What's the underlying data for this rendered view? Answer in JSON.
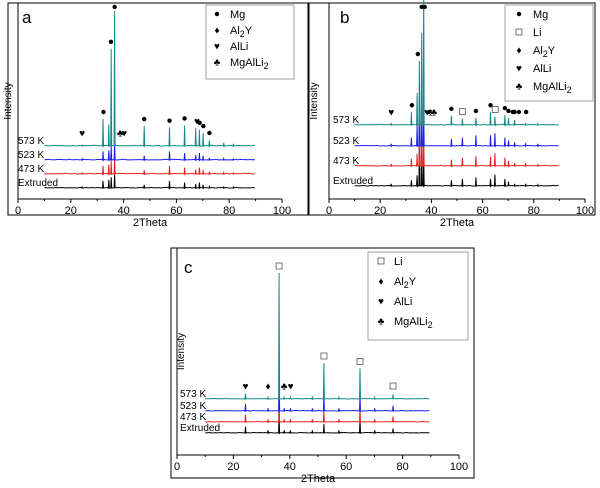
{
  "colors": {
    "Extruded": "#000000",
    "473 K": "#e8231c",
    "523 K": "#1d1ff2",
    "573 K": "#168a8a"
  },
  "chart_data": [
    {
      "type": "line",
      "panel_label": "a",
      "xlabel": "2Theta",
      "ylabel": "Intensity",
      "xlim": [
        0,
        100
      ],
      "xticks": [
        0,
        20,
        40,
        60,
        80,
        100
      ],
      "x_range": [
        10,
        90
      ],
      "series": [
        {
          "name": "Extruded",
          "label": "Extruded"
        },
        {
          "name": "473 K",
          "label": "473 K"
        },
        {
          "name": "523 K",
          "label": "523 K"
        },
        {
          "name": "573 K",
          "label": "573 K"
        }
      ],
      "peaks": [
        {
          "x": 24.3,
          "h": [
            0.2,
            0.2,
            0.25,
            0.15
          ]
        },
        {
          "x": 32.2,
          "h": [
            1.3,
            1.5,
            1.6,
            5.0
          ]
        },
        {
          "x": 34.4,
          "h": [
            1.5,
            1.7,
            1.8,
            4.0
          ]
        },
        {
          "x": 35.3,
          "h": [
            2.0,
            2.4,
            2.6,
            18.0
          ]
        },
        {
          "x": 36.6,
          "h": [
            2.5,
            3.0,
            3.2,
            25.0
          ]
        },
        {
          "x": 47.8,
          "h": [
            0.6,
            0.7,
            0.8,
            3.7
          ]
        },
        {
          "x": 57.4,
          "h": [
            1.3,
            1.5,
            1.6,
            3.4
          ]
        },
        {
          "x": 63.1,
          "h": [
            1.0,
            1.2,
            1.3,
            3.8
          ]
        },
        {
          "x": 67.3,
          "h": [
            0.7,
            0.8,
            0.9,
            3.3
          ]
        },
        {
          "x": 68.7,
          "h": [
            1.0,
            1.2,
            1.3,
            3.0
          ]
        },
        {
          "x": 70.1,
          "h": [
            0.6,
            0.7,
            0.8,
            2.4
          ]
        },
        {
          "x": 72.5,
          "h": [
            0.3,
            0.4,
            0.4,
            1.0
          ]
        },
        {
          "x": 77.9,
          "h": [
            0.2,
            0.3,
            0.3,
            0.6
          ]
        },
        {
          "x": 81.6,
          "h": [
            0.2,
            0.2,
            0.2,
            0.4
          ]
        }
      ],
      "annotations": [
        {
          "x": 24.3,
          "symbol": "heart"
        },
        {
          "x": 32.4,
          "symbol": "circle"
        },
        {
          "x": 35.2,
          "symbol": "circle"
        },
        {
          "x": 36.6,
          "symbol": "circle"
        },
        {
          "x": 38.7,
          "symbol": "club"
        },
        {
          "x": 40.2,
          "symbol": "heart"
        },
        {
          "x": 47.8,
          "symbol": "circle"
        },
        {
          "x": 57.4,
          "symbol": "circle"
        },
        {
          "x": 63.1,
          "symbol": "circle"
        },
        {
          "x": 67.8,
          "symbol": "heart"
        },
        {
          "x": 68.8,
          "symbol": "circle"
        },
        {
          "x": 70.2,
          "symbol": "circle"
        },
        {
          "x": 72.5,
          "symbol": "circle"
        }
      ],
      "legend": [
        {
          "symbol": "circle",
          "text": "Mg",
          "sub": ""
        },
        {
          "symbol": "diamond",
          "text": "Al",
          "sub": "2",
          "after": "Y"
        },
        {
          "symbol": "heart",
          "text": "AlLi",
          "sub": ""
        },
        {
          "symbol": "club",
          "text": "MgAlLi",
          "sub": "2"
        }
      ]
    },
    {
      "type": "line",
      "panel_label": "b",
      "xlabel": "2Theta",
      "ylabel": "Intensity",
      "xlim": [
        0,
        100
      ],
      "xticks": [
        0,
        20,
        40,
        60,
        80,
        100
      ],
      "x_range": [
        10,
        90
      ],
      "series": [
        {
          "name": "Extruded",
          "label": "Extruded"
        },
        {
          "name": "473 K",
          "label": "473 K"
        },
        {
          "name": "523 K",
          "label": "523 K"
        },
        {
          "name": "573 K",
          "label": "573 K"
        }
      ],
      "peaks": [
        {
          "x": 24.3,
          "h": [
            0.3,
            0.3,
            0.3,
            0.2
          ]
        },
        {
          "x": 32.2,
          "h": [
            0.8,
            1.0,
            1.2,
            1.8
          ]
        },
        {
          "x": 34.4,
          "h": [
            1.5,
            1.7,
            3.0,
            4.5
          ]
        },
        {
          "x": 35.3,
          "h": [
            6.0,
            6.0,
            7.0,
            9.0
          ]
        },
        {
          "x": 36.2,
          "h": [
            8.0,
            9.0,
            10.0,
            13.0
          ]
        },
        {
          "x": 37.0,
          "h": [
            4.0,
            4.0,
            5.0,
            20.0
          ]
        },
        {
          "x": 47.8,
          "h": [
            0.8,
            0.9,
            1.0,
            1.3
          ]
        },
        {
          "x": 52.1,
          "h": [
            1.0,
            1.2,
            1.2,
            0.9
          ]
        },
        {
          "x": 57.4,
          "h": [
            1.2,
            1.4,
            1.5,
            1.0
          ]
        },
        {
          "x": 63.1,
          "h": [
            1.0,
            1.3,
            1.5,
            1.8
          ]
        },
        {
          "x": 64.8,
          "h": [
            1.6,
            1.8,
            1.8,
            1.2
          ]
        },
        {
          "x": 68.7,
          "h": [
            1.0,
            1.2,
            1.2,
            1.4
          ]
        },
        {
          "x": 70.1,
          "h": [
            0.6,
            0.7,
            0.8,
            1.0
          ]
        },
        {
          "x": 72.5,
          "h": [
            0.3,
            0.4,
            0.5,
            0.7
          ]
        },
        {
          "x": 76.8,
          "h": [
            0.3,
            0.4,
            0.4,
            0.3
          ]
        },
        {
          "x": 81.6,
          "h": [
            0.2,
            0.2,
            0.3,
            0.2
          ]
        }
      ],
      "annotations": [
        {
          "x": 24.3,
          "symbol": "heart"
        },
        {
          "x": 32.4,
          "symbol": "circle"
        },
        {
          "x": 34.7,
          "symbol": "circle"
        },
        {
          "x": 36.2,
          "symbol": "circle"
        },
        {
          "x": 37.4,
          "symbol": "circle"
        },
        {
          "x": 38.3,
          "symbol": "heart"
        },
        {
          "x": 39.6,
          "symbol": "club"
        },
        {
          "x": 41.0,
          "symbol": "club"
        },
        {
          "x": 47.8,
          "symbol": "circle"
        },
        {
          "x": 52.1,
          "symbol": "square"
        },
        {
          "x": 57.4,
          "symbol": "circle"
        },
        {
          "x": 63.1,
          "symbol": "circle"
        },
        {
          "x": 64.9,
          "symbol": "square"
        },
        {
          "x": 68.7,
          "symbol": "circle"
        },
        {
          "x": 70.1,
          "symbol": "circle"
        },
        {
          "x": 71.8,
          "symbol": "circle"
        },
        {
          "x": 72.5,
          "symbol": "circle"
        },
        {
          "x": 74.2,
          "symbol": "circle"
        },
        {
          "x": 77.0,
          "symbol": "circle"
        }
      ],
      "legend": [
        {
          "symbol": "circle",
          "text": "Mg",
          "sub": ""
        },
        {
          "symbol": "square",
          "text": "Li",
          "sub": ""
        },
        {
          "symbol": "diamond",
          "text": "Al",
          "sub": "2",
          "after": "Y"
        },
        {
          "symbol": "heart",
          "text": "AlLi",
          "sub": ""
        },
        {
          "symbol": "club",
          "text": "MgAlLi",
          "sub": "2"
        }
      ]
    },
    {
      "type": "line",
      "panel_label": "c",
      "xlabel": "2Theta",
      "ylabel": "Intensity",
      "xlim": [
        0,
        100
      ],
      "xticks": [
        0,
        20,
        40,
        60,
        80,
        100
      ],
      "x_range": [
        10,
        90
      ],
      "series": [
        {
          "name": "Extruded",
          "label": "Extruded"
        },
        {
          "name": "473 K",
          "label": "473 K"
        },
        {
          "name": "523 K",
          "label": "523 K"
        },
        {
          "name": "573 K",
          "label": "573 K"
        }
      ],
      "peaks": [
        {
          "x": 24.3,
          "h": [
            0.7,
            0.8,
            0.8,
            0.6
          ]
        },
        {
          "x": 32.3,
          "h": [
            0.3,
            0.3,
            0.3,
            0.2
          ]
        },
        {
          "x": 36.2,
          "h": [
            2.0,
            3.0,
            6.0,
            14.0
          ]
        },
        {
          "x": 38.0,
          "h": [
            0.3,
            0.3,
            0.3,
            0.2
          ]
        },
        {
          "x": 40.2,
          "h": [
            0.3,
            0.3,
            0.3,
            0.2
          ]
        },
        {
          "x": 48.0,
          "h": [
            0.3,
            0.3,
            0.3,
            0.2
          ]
        },
        {
          "x": 52.1,
          "h": [
            1.0,
            1.2,
            1.8,
            4.0
          ]
        },
        {
          "x": 57.4,
          "h": [
            0.3,
            0.3,
            0.3,
            0.2
          ]
        },
        {
          "x": 64.9,
          "h": [
            1.4,
            1.6,
            1.9,
            3.4
          ]
        },
        {
          "x": 70.1,
          "h": [
            0.3,
            0.3,
            0.3,
            0.2
          ]
        },
        {
          "x": 76.6,
          "h": [
            0.5,
            0.6,
            0.6,
            0.5
          ]
        }
      ],
      "annotations": [
        {
          "x": 24.3,
          "symbol": "heart"
        },
        {
          "x": 32.3,
          "symbol": "diamond"
        },
        {
          "x": 36.2,
          "symbol": "square"
        },
        {
          "x": 38.0,
          "symbol": "club"
        },
        {
          "x": 40.3,
          "symbol": "heart"
        },
        {
          "x": 52.1,
          "symbol": "square"
        },
        {
          "x": 64.9,
          "symbol": "square"
        },
        {
          "x": 76.6,
          "symbol": "square"
        }
      ],
      "legend": [
        {
          "symbol": "square",
          "text": "Li",
          "sub": ""
        },
        {
          "symbol": "diamond",
          "text": "Al",
          "sub": "2",
          "after": "Y"
        },
        {
          "symbol": "heart",
          "text": "AlLi",
          "sub": ""
        },
        {
          "symbol": "club",
          "text": "MgAlLi",
          "sub": "2"
        }
      ]
    }
  ]
}
